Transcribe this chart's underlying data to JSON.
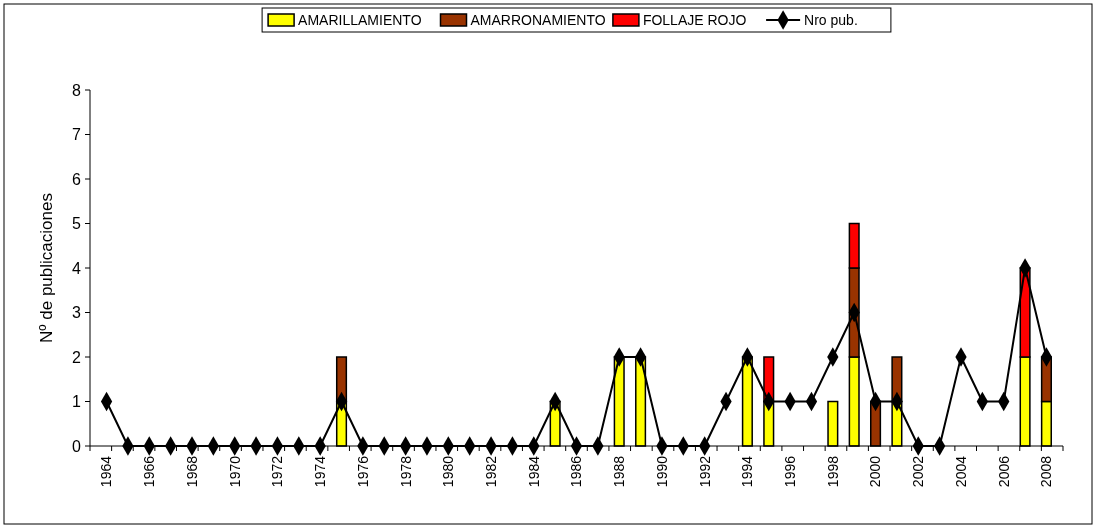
{
  "chart_data": {
    "type": "bar",
    "stacked": true,
    "ylabel": "Nº de publicaciones",
    "categories": [
      "1964",
      null,
      "1966",
      null,
      "1968",
      null,
      "1970",
      null,
      "1972",
      null,
      "1974",
      null,
      "1976",
      null,
      "1978",
      null,
      "1980",
      null,
      "1982",
      null,
      "1984",
      null,
      "1986",
      null,
      "1988",
      null,
      "1990",
      null,
      "1992",
      null,
      "1994",
      null,
      "1996",
      null,
      "1998",
      null,
      "2000",
      null,
      "2002",
      null,
      "2004",
      null,
      "2006",
      null,
      "2008"
    ],
    "series": [
      {
        "name": "AMARILLAMIENTO",
        "color": "#ffff00",
        "values": [
          null,
          null,
          null,
          null,
          null,
          null,
          null,
          null,
          null,
          null,
          null,
          1,
          null,
          null,
          null,
          null,
          null,
          null,
          null,
          null,
          null,
          1,
          null,
          null,
          2,
          2,
          null,
          null,
          null,
          null,
          2,
          1,
          null,
          null,
          1,
          2,
          null,
          1,
          null,
          null,
          null,
          null,
          null,
          2,
          1
        ]
      },
      {
        "name": "AMARRONAMIENTO",
        "color": "#993300",
        "values": [
          null,
          null,
          null,
          null,
          null,
          null,
          null,
          null,
          null,
          null,
          null,
          1,
          null,
          null,
          null,
          null,
          null,
          null,
          null,
          null,
          null,
          null,
          null,
          null,
          null,
          null,
          null,
          null,
          null,
          null,
          null,
          null,
          null,
          null,
          null,
          2,
          1,
          1,
          null,
          null,
          null,
          null,
          null,
          null,
          1
        ]
      },
      {
        "name": "FOLLAJE ROJO",
        "color": "#ff0000",
        "values": [
          null,
          null,
          null,
          null,
          null,
          null,
          null,
          null,
          null,
          null,
          null,
          null,
          null,
          null,
          null,
          null,
          null,
          null,
          null,
          null,
          null,
          null,
          null,
          null,
          null,
          null,
          null,
          null,
          null,
          null,
          null,
          1,
          null,
          null,
          null,
          1,
          null,
          null,
          null,
          null,
          null,
          null,
          null,
          2,
          null
        ]
      },
      {
        "name": "Nro pub.",
        "type": "line",
        "color": "#000000",
        "marker": "diamond",
        "values": [
          1,
          0,
          0,
          0,
          0,
          0,
          0,
          0,
          0,
          0,
          0,
          1,
          0,
          0,
          0,
          0,
          0,
          0,
          0,
          0,
          0,
          1,
          0,
          0,
          2,
          2,
          0,
          0,
          0,
          1,
          2,
          1,
          1,
          1,
          2,
          3,
          1,
          1,
          0,
          0,
          2,
          1,
          1,
          4,
          2
        ]
      }
    ],
    "ylim": [
      0,
      8
    ],
    "yticks": [
      0,
      1,
      2,
      3,
      4,
      5,
      6,
      7,
      8
    ],
    "grid": false,
    "legend": "top"
  }
}
